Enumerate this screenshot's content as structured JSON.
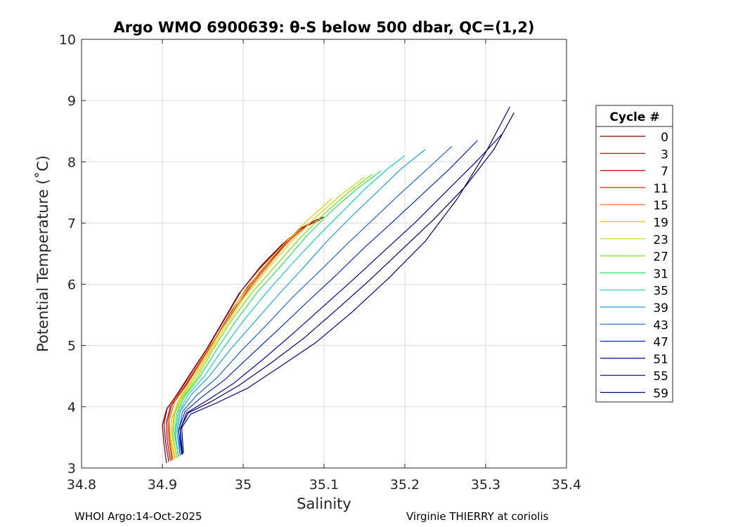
{
  "chart_data": {
    "type": "line",
    "title": "Argo WMO 6900639: θ-S below 500 dbar,  QC=(1,2)",
    "xlabel": "Salinity",
    "ylabel": "Potential Temperature (˚C)",
    "xlim": [
      34.8,
      35.4
    ],
    "ylim": [
      3,
      10
    ],
    "xticks": [
      "34.8",
      "34.9",
      "35",
      "35.1",
      "35.2",
      "35.3",
      "35.4"
    ],
    "yticks": [
      "3",
      "4",
      "5",
      "6",
      "7",
      "8",
      "9",
      "10"
    ],
    "grid": true,
    "legend_title": "Cycle #",
    "legend_position": "outside-right",
    "series": [
      {
        "name": "0",
        "color": "#800000",
        "x": [
          34.905,
          34.902,
          34.9,
          34.905,
          34.918,
          34.935,
          34.955,
          34.975,
          34.995,
          35.02,
          35.045,
          35.07,
          35.09,
          35.098
        ],
        "y": [
          3.08,
          3.4,
          3.7,
          3.95,
          4.2,
          4.55,
          4.95,
          5.4,
          5.85,
          6.25,
          6.6,
          6.9,
          7.05,
          7.08
        ]
      },
      {
        "name": "3",
        "color": "#a00000",
        "x": [
          34.908,
          34.904,
          34.902,
          34.906,
          34.92,
          34.938,
          34.958,
          34.978,
          34.998,
          35.022,
          35.048,
          35.072,
          35.092,
          35.1
        ],
        "y": [
          3.1,
          3.42,
          3.72,
          3.98,
          4.22,
          4.6,
          5.0,
          5.45,
          5.9,
          6.3,
          6.65,
          6.92,
          7.06,
          7.1
        ]
      },
      {
        "name": "7",
        "color": "#c80000",
        "x": [
          34.91,
          34.906,
          34.905,
          34.91,
          34.925,
          34.945,
          34.965,
          34.985,
          35.005,
          35.03,
          35.055,
          35.078,
          35.095
        ],
        "y": [
          3.12,
          3.45,
          3.75,
          4.0,
          4.28,
          4.7,
          5.1,
          5.55,
          5.95,
          6.35,
          6.7,
          6.95,
          7.05
        ]
      },
      {
        "name": "11",
        "color": "#f01e00",
        "x": [
          34.912,
          34.908,
          34.907,
          34.912,
          34.928,
          34.948,
          34.968,
          34.99,
          35.01,
          35.035,
          35.06,
          35.08
        ],
        "y": [
          3.12,
          3.48,
          3.78,
          4.05,
          4.32,
          4.75,
          5.15,
          5.6,
          6.0,
          6.4,
          6.75,
          6.98
        ]
      },
      {
        "name": "15",
        "color": "#ff6400",
        "x": [
          34.913,
          34.909,
          34.909,
          34.915,
          34.93,
          34.95,
          34.97,
          34.992,
          35.015,
          35.04,
          35.062
        ],
        "y": [
          3.14,
          3.5,
          3.8,
          4.08,
          4.35,
          4.78,
          5.2,
          5.65,
          6.05,
          6.45,
          6.8
        ]
      },
      {
        "name": "19",
        "color": "#e6c800",
        "x": [
          34.915,
          34.91,
          34.912,
          34.92,
          34.935,
          34.955,
          34.975,
          34.995,
          35.02,
          35.05,
          35.08,
          35.11
        ],
        "y": [
          3.15,
          3.5,
          3.82,
          4.1,
          4.4,
          4.85,
          5.3,
          5.75,
          6.2,
          6.65,
          7.05,
          7.4
        ]
      },
      {
        "name": "23",
        "color": "#c8dc00",
        "x": [
          34.916,
          34.912,
          34.914,
          34.922,
          34.938,
          34.958,
          34.98,
          35.002,
          35.03,
          35.06,
          35.09,
          35.12,
          35.15
        ],
        "y": [
          3.15,
          3.52,
          3.85,
          4.12,
          4.42,
          4.88,
          5.35,
          5.8,
          6.25,
          6.7,
          7.1,
          7.45,
          7.75
        ]
      },
      {
        "name": "27",
        "color": "#78e600",
        "x": [
          34.918,
          34.913,
          34.915,
          34.925,
          34.942,
          34.962,
          34.985,
          35.01,
          35.04,
          35.07,
          35.1,
          35.13,
          35.16
        ],
        "y": [
          3.16,
          3.54,
          3.88,
          4.15,
          4.45,
          4.92,
          5.4,
          5.85,
          6.3,
          6.75,
          7.15,
          7.5,
          7.8
        ]
      },
      {
        "name": "31",
        "color": "#28e664",
        "x": [
          34.92,
          34.915,
          34.918,
          34.928,
          34.946,
          34.968,
          34.992,
          35.018,
          35.048,
          35.078,
          35.108,
          35.14,
          35.17
        ],
        "y": [
          3.18,
          3.55,
          3.9,
          4.18,
          4.48,
          4.95,
          5.42,
          5.88,
          6.32,
          6.78,
          7.18,
          7.55,
          7.85
        ]
      },
      {
        "name": "35",
        "color": "#14d2c8",
        "x": [
          34.92,
          34.916,
          34.92,
          34.932,
          34.952,
          34.975,
          35.0,
          35.028,
          35.058,
          35.09,
          35.12,
          35.15,
          35.18,
          35.2
        ],
        "y": [
          3.18,
          3.56,
          3.9,
          4.2,
          4.5,
          4.95,
          5.4,
          5.85,
          6.3,
          6.75,
          7.15,
          7.55,
          7.9,
          8.1
        ]
      },
      {
        "name": "39",
        "color": "#1ea0f0",
        "x": [
          34.922,
          34.918,
          34.922,
          34.936,
          34.958,
          34.985,
          35.015,
          35.045,
          35.075,
          35.105,
          35.135,
          35.165,
          35.195,
          35.225
        ],
        "y": [
          3.2,
          3.58,
          3.92,
          4.2,
          4.5,
          4.95,
          5.4,
          5.85,
          6.28,
          6.72,
          7.12,
          7.5,
          7.88,
          8.2
        ]
      },
      {
        "name": "43",
        "color": "#1e64dc",
        "x": [
          34.922,
          34.92,
          34.925,
          34.942,
          34.968,
          34.998,
          35.03,
          35.062,
          35.095,
          35.128,
          35.16,
          35.192,
          35.225,
          35.258
        ],
        "y": [
          3.2,
          3.6,
          3.92,
          4.18,
          4.48,
          4.92,
          5.35,
          5.8,
          6.22,
          6.65,
          7.05,
          7.45,
          7.85,
          8.25
        ]
      },
      {
        "name": "47",
        "color": "#0a28c8",
        "x": [
          34.924,
          34.92,
          34.928,
          34.948,
          34.978,
          35.01,
          35.045,
          35.08,
          35.115,
          35.15,
          35.185,
          35.22,
          35.255,
          35.29
        ],
        "y": [
          3.22,
          3.62,
          3.92,
          4.15,
          4.45,
          4.85,
          5.28,
          5.72,
          6.15,
          6.6,
          7.02,
          7.45,
          7.88,
          8.35
        ]
      },
      {
        "name": "51",
        "color": "#0000aa",
        "x": [
          34.924,
          34.922,
          34.93,
          34.955,
          34.988,
          35.025,
          35.062,
          35.1,
          35.138,
          35.175,
          35.212,
          35.25,
          35.288,
          35.32
        ],
        "y": [
          3.22,
          3.62,
          3.9,
          4.1,
          4.38,
          4.78,
          5.2,
          5.65,
          6.1,
          6.55,
          7.0,
          7.5,
          8.0,
          8.45
        ]
      },
      {
        "name": "55",
        "color": "#000064",
        "x": [
          34.925,
          34.922,
          34.932,
          34.96,
          34.995,
          35.035,
          35.075,
          35.115,
          35.155,
          35.195,
          35.235,
          35.275,
          35.31,
          35.335
        ],
        "y": [
          3.22,
          3.64,
          3.9,
          4.08,
          4.35,
          4.72,
          5.12,
          5.58,
          6.05,
          6.55,
          7.05,
          7.6,
          8.2,
          8.8
        ]
      },
      {
        "name": "59",
        "color": "#000080",
        "x": [
          34.926,
          34.924,
          34.935,
          34.965,
          35.005,
          35.045,
          35.09,
          35.135,
          35.18,
          35.225,
          35.265,
          35.3,
          35.33
        ],
        "y": [
          3.24,
          3.66,
          3.88,
          4.05,
          4.3,
          4.65,
          5.05,
          5.55,
          6.1,
          6.7,
          7.4,
          8.15,
          8.9
        ]
      }
    ]
  },
  "footer": {
    "left": "WHOI Argo:14-Oct-2025",
    "right": "Virginie THIERRY at coriolis"
  }
}
